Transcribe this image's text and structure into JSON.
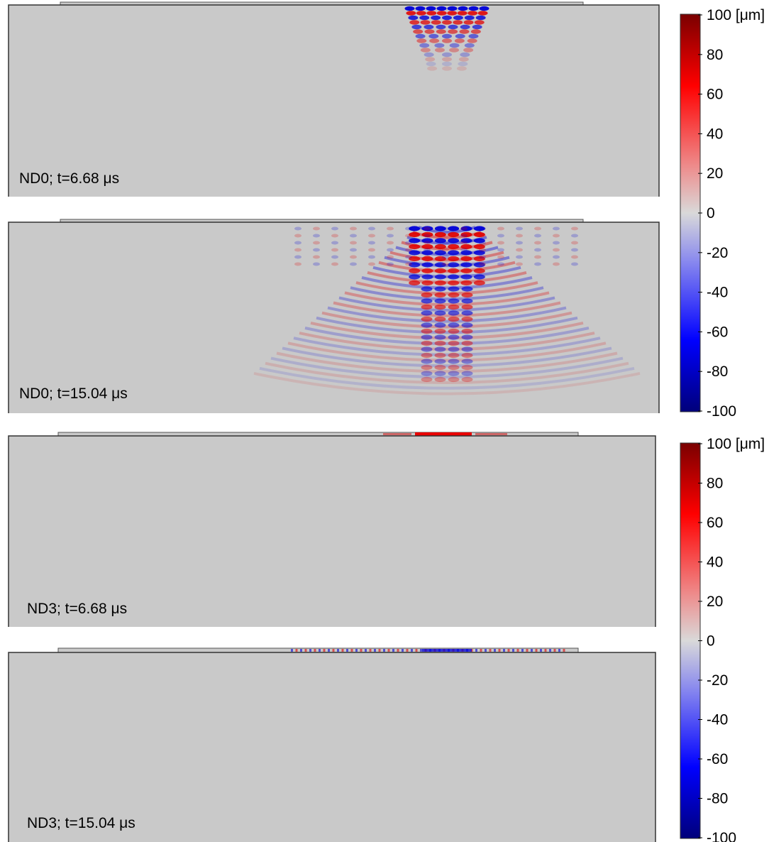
{
  "panels": [
    {
      "label": "ND0; t=6.68 μs"
    },
    {
      "label": "ND0; t=15.04 μs"
    },
    {
      "label": "ND3; t=6.68 μs"
    },
    {
      "label": "ND3; t=15.04 μs"
    }
  ],
  "colorbars": [
    {
      "ticks": [
        "100 [μm]",
        "80",
        "60",
        "40",
        "20",
        "0",
        "-20",
        "-40",
        "-60",
        "-80",
        "-100"
      ]
    },
    {
      "ticks": [
        "100 [μm]",
        "80",
        "60",
        "40",
        "20",
        "0",
        "-20",
        "-40",
        "-60",
        "-80",
        "-100"
      ]
    }
  ],
  "colors": {
    "background_field": "#c9c9c9",
    "positive": "#e00000",
    "negative": "#0000d8",
    "max": "#7a0000",
    "min": "#00007a"
  }
}
